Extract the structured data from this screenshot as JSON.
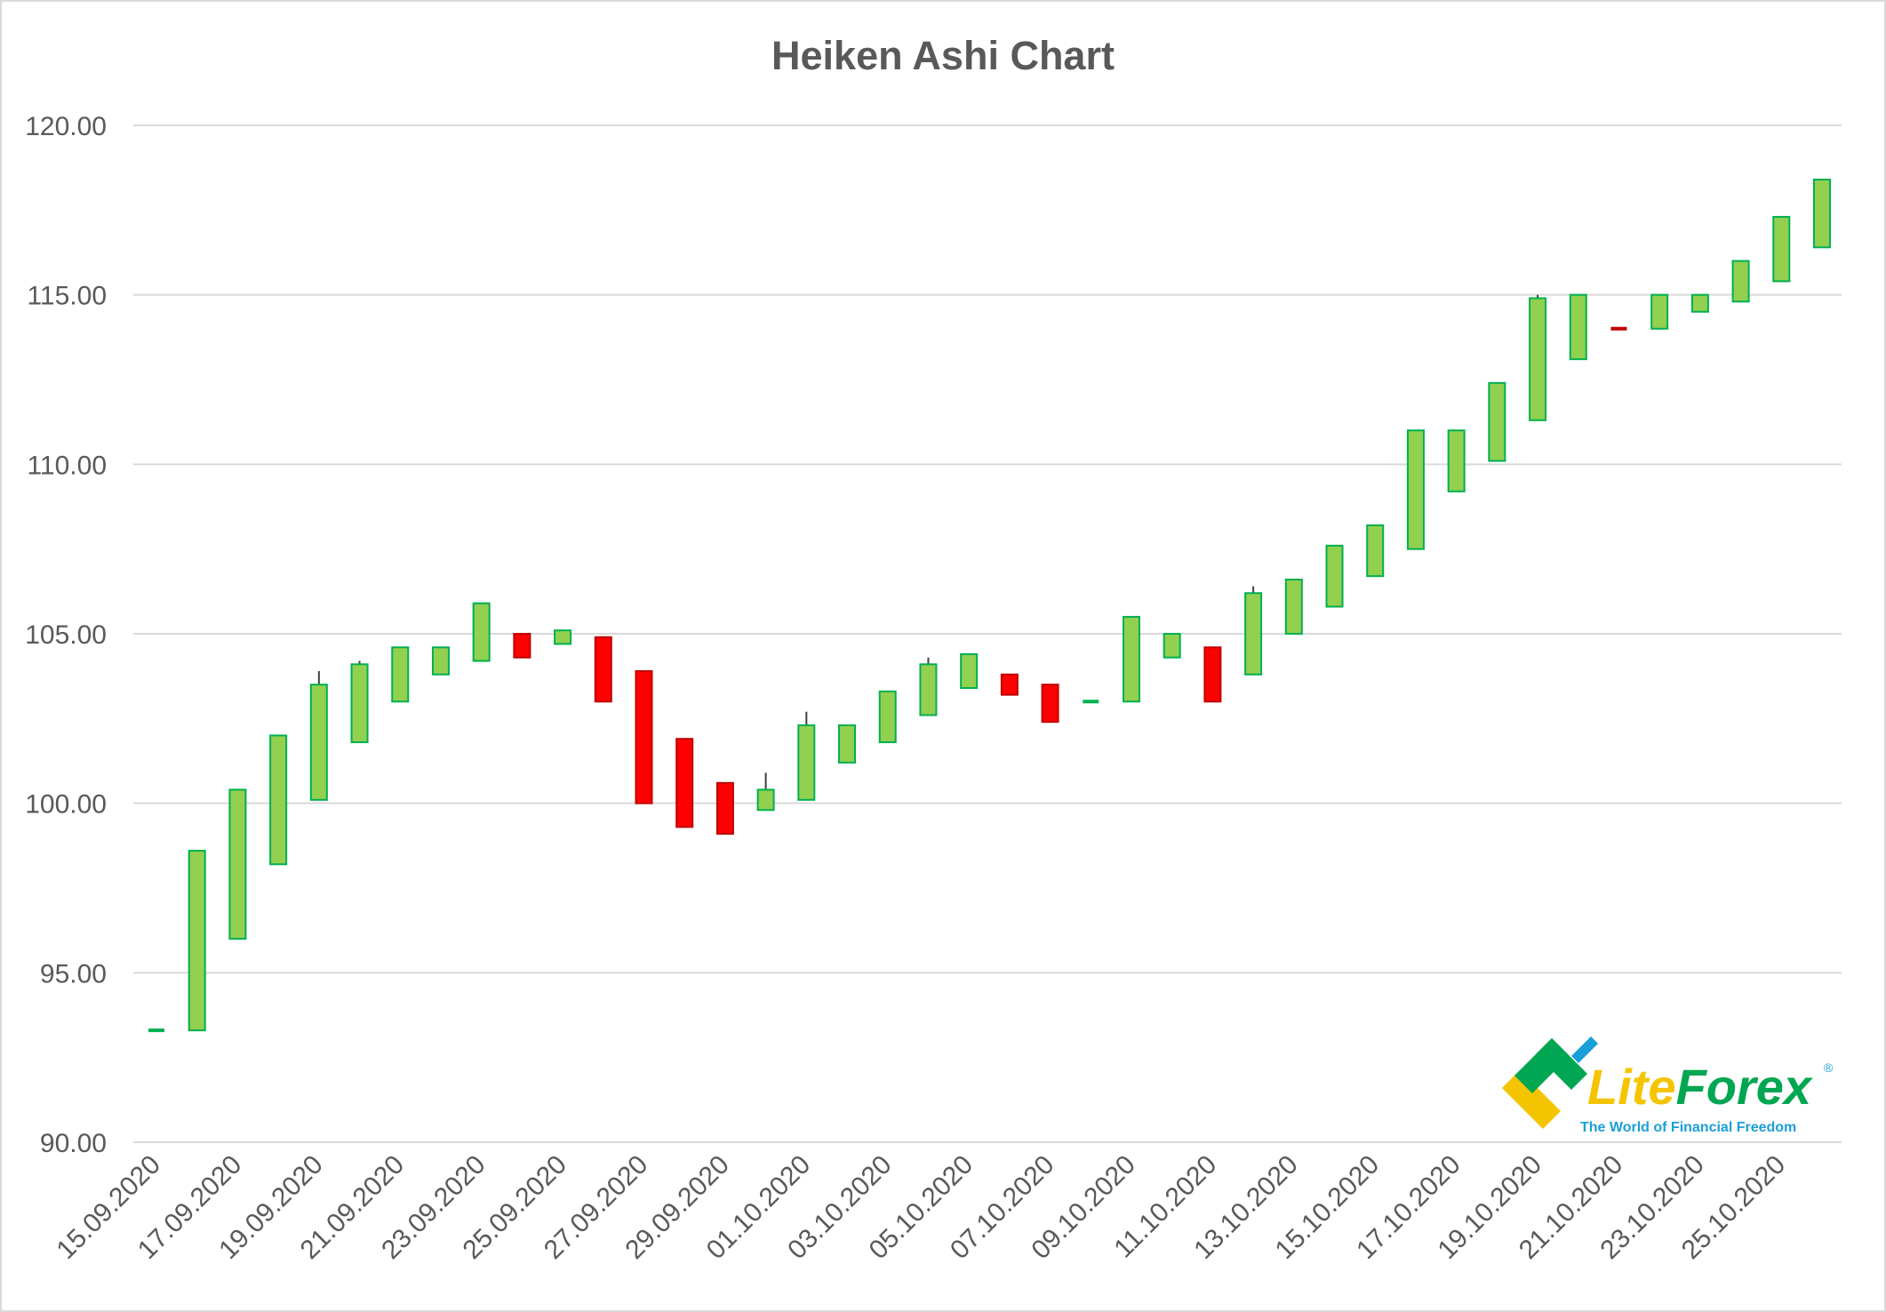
{
  "colors": {
    "up_fill": "#92d050",
    "up_stroke": "#00b050",
    "down_fill": "#ff0000",
    "down_stroke": "#c00000",
    "doji_down": "#c00000",
    "doji_up": "#00b050",
    "wick": "#404040",
    "grid": "#d9d9d9",
    "text": "#595959"
  },
  "logo": {
    "name_part1": "Lite",
    "name_part2": "Forex",
    "registered": "®",
    "tagline": "The World of Financial Freedom",
    "icon": "liteforex-logo-icon",
    "color_green": "#00a651",
    "color_yellow": "#f5c400",
    "color_blue": "#1a9fd8"
  },
  "chart_data": {
    "type": "candlestick",
    "title": "Heiken Ashi Chart",
    "xlabel": "",
    "ylabel": "",
    "ylim": [
      90,
      120
    ],
    "yticks": [
      "90.00",
      "95.00",
      "100.00",
      "105.00",
      "110.00",
      "115.00",
      "120.00"
    ],
    "ytick_values": [
      90,
      95,
      100,
      105,
      110,
      115,
      120
    ],
    "grid": true,
    "legend": "none",
    "xtick_labels": [
      "15.09.2020",
      "17.09.2020",
      "19.09.2020",
      "21.09.2020",
      "23.09.2020",
      "25.09.2020",
      "27.09.2020",
      "29.09.2020",
      "01.10.2020",
      "03.10.2020",
      "05.10.2020",
      "07.10.2020",
      "09.10.2020",
      "11.10.2020",
      "13.10.2020",
      "15.10.2020",
      "17.10.2020",
      "19.10.2020",
      "21.10.2020",
      "23.10.2020",
      "25.10.2020"
    ],
    "xtick_every": 2,
    "candles": [
      {
        "date": "15.09.2020",
        "open": 93.3,
        "close": 93.3,
        "high": 93.3,
        "low": 93.3
      },
      {
        "date": "16.09.2020",
        "open": 93.3,
        "close": 98.6,
        "high": 98.6,
        "low": 93.3
      },
      {
        "date": "17.09.2020",
        "open": 96.0,
        "close": 100.4,
        "high": 100.4,
        "low": 96.0
      },
      {
        "date": "18.09.2020",
        "open": 98.2,
        "close": 102.0,
        "high": 102.0,
        "low": 98.2
      },
      {
        "date": "19.09.2020",
        "open": 100.1,
        "close": 103.5,
        "high": 103.9,
        "low": 100.1
      },
      {
        "date": "20.09.2020",
        "open": 101.8,
        "close": 104.1,
        "high": 104.2,
        "low": 101.8
      },
      {
        "date": "21.09.2020",
        "open": 103.0,
        "close": 104.6,
        "high": 104.6,
        "low": 103.0
      },
      {
        "date": "22.09.2020",
        "open": 103.8,
        "close": 104.6,
        "high": 104.6,
        "low": 103.8
      },
      {
        "date": "23.09.2020",
        "open": 104.2,
        "close": 105.9,
        "high": 105.9,
        "low": 104.2
      },
      {
        "date": "24.09.2020",
        "open": 105.0,
        "close": 104.3,
        "high": 105.0,
        "low": 104.3
      },
      {
        "date": "25.09.2020",
        "open": 104.7,
        "close": 105.1,
        "high": 105.1,
        "low": 104.7
      },
      {
        "date": "26.09.2020",
        "open": 104.9,
        "close": 103.0,
        "high": 104.9,
        "low": 103.0
      },
      {
        "date": "27.09.2020",
        "open": 103.9,
        "close": 100.0,
        "high": 103.9,
        "low": 100.0
      },
      {
        "date": "28.09.2020",
        "open": 101.9,
        "close": 99.3,
        "high": 101.9,
        "low": 99.3
      },
      {
        "date": "29.09.2020",
        "open": 100.6,
        "close": 99.1,
        "high": 100.6,
        "low": 99.1
      },
      {
        "date": "30.09.2020",
        "open": 99.8,
        "close": 100.4,
        "high": 100.9,
        "low": 99.8
      },
      {
        "date": "01.10.2020",
        "open": 100.1,
        "close": 102.3,
        "high": 102.7,
        "low": 100.1
      },
      {
        "date": "02.10.2020",
        "open": 101.2,
        "close": 102.3,
        "high": 102.3,
        "low": 101.2
      },
      {
        "date": "03.10.2020",
        "open": 101.8,
        "close": 103.3,
        "high": 103.3,
        "low": 101.8
      },
      {
        "date": "04.10.2020",
        "open": 102.6,
        "close": 104.1,
        "high": 104.3,
        "low": 102.6
      },
      {
        "date": "05.10.2020",
        "open": 103.4,
        "close": 104.4,
        "high": 104.4,
        "low": 103.4
      },
      {
        "date": "06.10.2020",
        "open": 103.8,
        "close": 103.2,
        "high": 103.8,
        "low": 103.2
      },
      {
        "date": "07.10.2020",
        "open": 103.5,
        "close": 102.4,
        "high": 103.5,
        "low": 102.4
      },
      {
        "date": "08.10.2020",
        "open": 103.0,
        "close": 103.0,
        "high": 103.0,
        "low": 103.0
      },
      {
        "date": "09.10.2020",
        "open": 103.0,
        "close": 105.5,
        "high": 105.5,
        "low": 103.0
      },
      {
        "date": "10.10.2020",
        "open": 104.3,
        "close": 105.0,
        "high": 105.0,
        "low": 104.3
      },
      {
        "date": "11.10.2020",
        "open": 104.6,
        "close": 103.0,
        "high": 104.6,
        "low": 103.0
      },
      {
        "date": "12.10.2020",
        "open": 103.8,
        "close": 106.2,
        "high": 106.4,
        "low": 103.8
      },
      {
        "date": "13.10.2020",
        "open": 105.0,
        "close": 106.6,
        "high": 106.6,
        "low": 105.0
      },
      {
        "date": "14.10.2020",
        "open": 105.8,
        "close": 107.6,
        "high": 107.6,
        "low": 105.8
      },
      {
        "date": "15.10.2020",
        "open": 106.7,
        "close": 108.2,
        "high": 108.2,
        "low": 106.7
      },
      {
        "date": "16.10.2020",
        "open": 107.5,
        "close": 111.0,
        "high": 111.0,
        "low": 107.5
      },
      {
        "date": "17.10.2020",
        "open": 109.2,
        "close": 111.0,
        "high": 111.0,
        "low": 109.2
      },
      {
        "date": "18.10.2020",
        "open": 110.1,
        "close": 112.4,
        "high": 112.4,
        "low": 110.1
      },
      {
        "date": "19.10.2020",
        "open": 111.3,
        "close": 114.9,
        "high": 115.0,
        "low": 111.3
      },
      {
        "date": "20.10.2020",
        "open": 113.1,
        "close": 115.0,
        "high": 115.0,
        "low": 113.1
      },
      {
        "date": "21.10.2020",
        "open": 114.0,
        "close": 114.0,
        "high": 114.0,
        "low": 114.0
      },
      {
        "date": "22.10.2020",
        "open": 114.0,
        "close": 115.0,
        "high": 115.0,
        "low": 114.0
      },
      {
        "date": "23.10.2020",
        "open": 114.5,
        "close": 115.0,
        "high": 115.0,
        "low": 114.5
      },
      {
        "date": "24.10.2020",
        "open": 114.8,
        "close": 116.0,
        "high": 116.0,
        "low": 114.8
      },
      {
        "date": "25.10.2020",
        "open": 115.4,
        "close": 117.3,
        "high": 117.3,
        "low": 115.4
      },
      {
        "date": "26.10.2020",
        "open": 116.4,
        "close": 118.4,
        "high": 118.4,
        "low": 116.4
      }
    ]
  }
}
